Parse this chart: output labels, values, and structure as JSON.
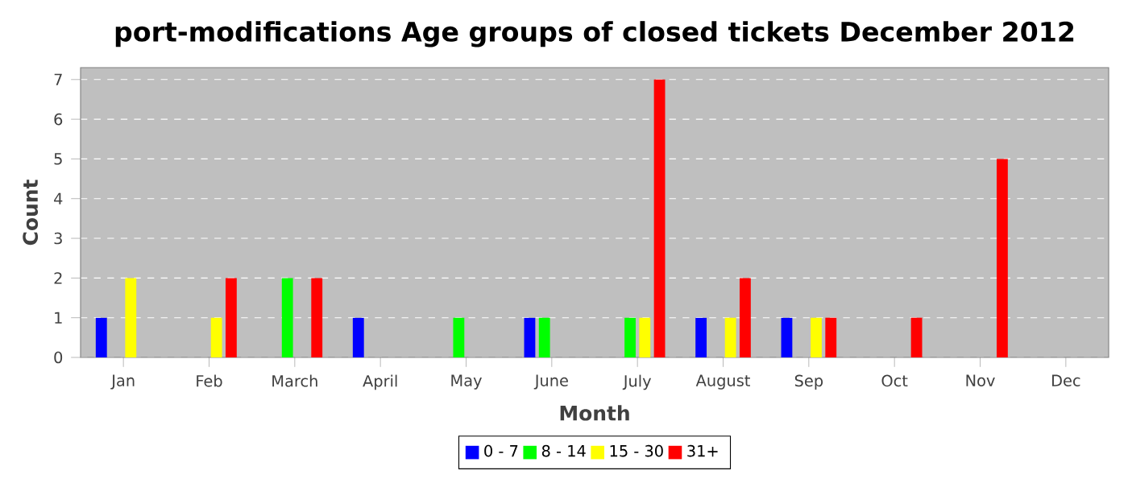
{
  "chart_data": {
    "type": "bar",
    "title": "port-modifications Age groups of closed tickets December 2012",
    "xlabel": "Month",
    "ylabel": "Count",
    "categories": [
      "Jan",
      "Feb",
      "March",
      "April",
      "May",
      "June",
      "July",
      "August",
      "Sep",
      "Oct",
      "Nov",
      "Dec"
    ],
    "series": [
      {
        "name": "0 - 7",
        "color": "#0000ff",
        "values": [
          1,
          0,
          0,
          1,
          0,
          1,
          0,
          1,
          1,
          0,
          0,
          0
        ]
      },
      {
        "name": "8 - 14",
        "color": "#00ff00",
        "values": [
          0,
          0,
          2,
          0,
          1,
          1,
          1,
          0,
          0,
          0,
          0,
          0
        ]
      },
      {
        "name": "15 - 30",
        "color": "#ffff00",
        "values": [
          2,
          1,
          0,
          0,
          0,
          0,
          1,
          1,
          1,
          0,
          0,
          0
        ]
      },
      {
        "name": "31+",
        "color": "#ff0000",
        "values": [
          0,
          2,
          2,
          0,
          0,
          0,
          7,
          2,
          1,
          1,
          5,
          0
        ]
      }
    ],
    "ylim": [
      0,
      7.3
    ],
    "yticks": [
      0,
      1,
      2,
      3,
      4,
      5,
      6,
      7
    ],
    "grid": "y",
    "legend": "bottom"
  }
}
